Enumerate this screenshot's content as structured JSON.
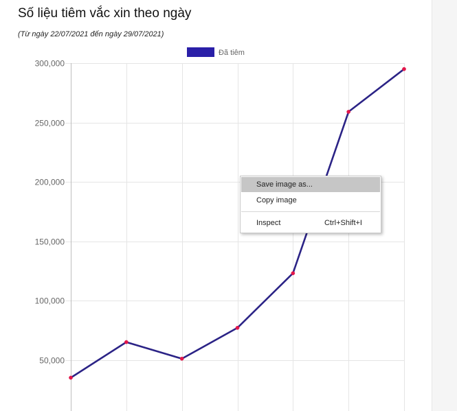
{
  "page": {
    "title": "Số liệu tiêm vắc xin theo ngày",
    "subtitle": "(Từ ngày 22/07/2021 đến ngày 29/07/2021)"
  },
  "chart_data": {
    "type": "line",
    "title": "",
    "xlabel": "",
    "ylabel": "",
    "x": [
      1,
      2,
      3,
      4,
      5,
      6,
      7
    ],
    "ylim": [
      0,
      300000
    ],
    "yticks": [
      50000,
      100000,
      150000,
      200000,
      250000,
      300000
    ],
    "ytick_labels": [
      "50,000",
      "100,000",
      "150,000",
      "200,000",
      "250,000",
      "300,000"
    ],
    "grid": true,
    "legend_position": "top",
    "series": [
      {
        "name": "Đã tiêm",
        "values": [
          35000,
          65000,
          51000,
          77000,
          123000,
          259000,
          295000
        ],
        "line_color": "#2b2386",
        "legend_color": "#2a1fa8",
        "point_color": "#e3174b"
      }
    ]
  },
  "context_menu": {
    "items": [
      {
        "label": "Save image as...",
        "shortcut": ""
      },
      {
        "label": "Copy image",
        "shortcut": ""
      },
      {
        "label": "Inspect",
        "shortcut": "Ctrl+Shift+I"
      }
    ]
  }
}
